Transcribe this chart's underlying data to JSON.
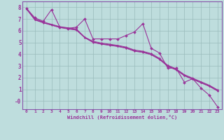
{
  "xlabel": "Windchill (Refroidissement éolien,°C)",
  "background_color": "#bedddd",
  "grid_color": "#99bbbb",
  "line_color": "#993399",
  "spine_color": "#8855aa",
  "xlim": [
    -0.5,
    23.5
  ],
  "ylim": [
    -0.7,
    8.5
  ],
  "xticks": [
    0,
    1,
    2,
    3,
    4,
    5,
    6,
    7,
    8,
    9,
    10,
    11,
    12,
    13,
    14,
    15,
    16,
    17,
    18,
    19,
    20,
    21,
    22,
    23
  ],
  "yticks": [
    0,
    1,
    2,
    3,
    4,
    5,
    6,
    7,
    8
  ],
  "ytick_labels": [
    "-0",
    "1",
    "2",
    "3",
    "4",
    "5",
    "6",
    "7",
    "8"
  ],
  "series": [
    [
      7.9,
      7.1,
      6.8,
      7.8,
      6.3,
      6.2,
      6.3,
      7.0,
      5.3,
      5.3,
      5.3,
      5.3,
      5.6,
      5.9,
      6.6,
      4.5,
      4.1,
      2.8,
      2.8,
      1.6,
      1.9,
      1.1,
      0.5,
      -0.5
    ],
    [
      7.9,
      7.0,
      6.75,
      6.55,
      6.35,
      6.25,
      6.15,
      5.45,
      5.1,
      4.95,
      4.85,
      4.75,
      4.6,
      4.35,
      4.25,
      4.05,
      3.65,
      3.05,
      2.75,
      2.25,
      1.95,
      1.65,
      1.35,
      0.95
    ],
    [
      7.85,
      6.95,
      6.7,
      6.5,
      6.3,
      6.2,
      6.1,
      5.45,
      5.05,
      4.9,
      4.8,
      4.7,
      4.55,
      4.3,
      4.2,
      4.0,
      3.6,
      3.0,
      2.7,
      2.2,
      1.9,
      1.6,
      1.3,
      0.9
    ],
    [
      7.85,
      6.95,
      6.7,
      6.5,
      6.3,
      6.18,
      6.08,
      5.42,
      5.02,
      4.87,
      4.77,
      4.67,
      4.52,
      4.27,
      4.17,
      3.97,
      3.57,
      2.97,
      2.67,
      2.17,
      1.87,
      1.57,
      1.27,
      0.87
    ],
    [
      7.85,
      6.92,
      6.67,
      6.47,
      6.27,
      6.15,
      6.05,
      5.4,
      5.0,
      4.85,
      4.75,
      4.65,
      4.5,
      4.25,
      4.15,
      3.95,
      3.55,
      2.95,
      2.65,
      2.15,
      1.85,
      1.55,
      1.25,
      0.85
    ]
  ]
}
